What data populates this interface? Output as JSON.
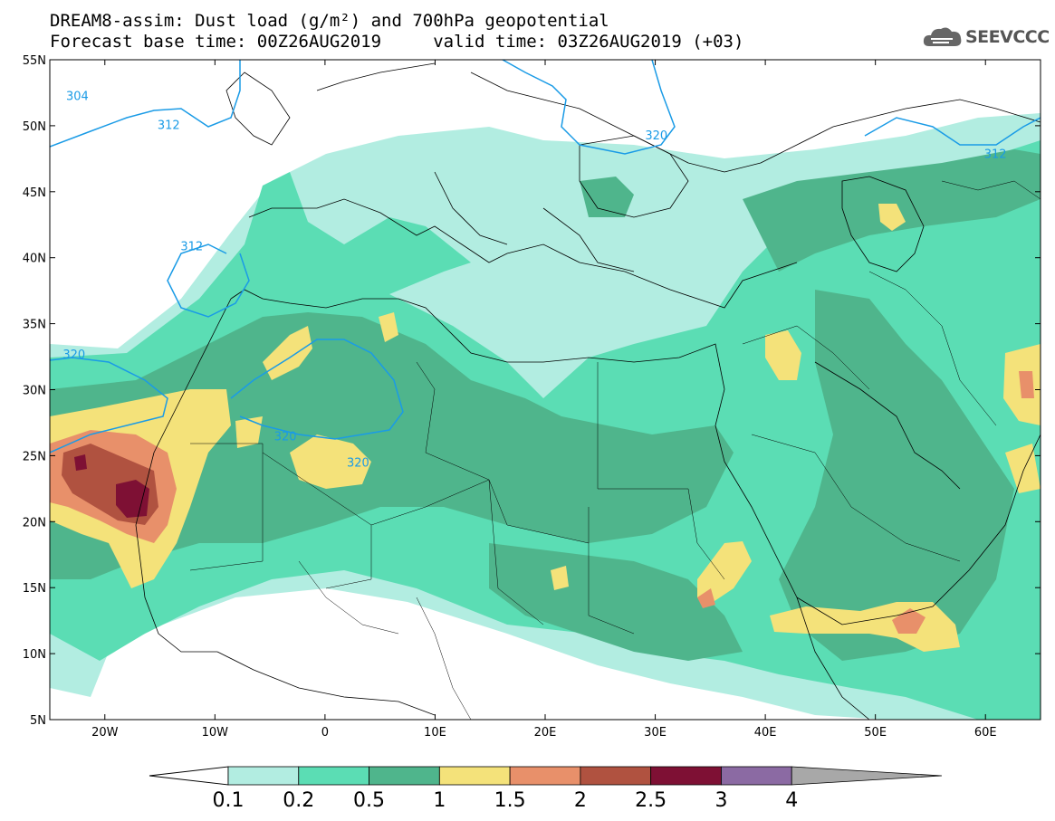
{
  "header": {
    "title_line1": "DREAM8-assim: Dust load (g/m²) and 700hPa geopotential",
    "title_line2": "Forecast base time: 00Z26AUG2019     valid time: 03Z26AUG2019 (+03)"
  },
  "logo": {
    "text": "SEEVCCC",
    "icon": "cloud-icon"
  },
  "map": {
    "lon_range": [
      -25,
      65
    ],
    "lat_range": [
      5,
      55
    ],
    "lon_ticks": [
      {
        "value": -20,
        "label": "20W"
      },
      {
        "value": -10,
        "label": "10W"
      },
      {
        "value": 0,
        "label": "0"
      },
      {
        "value": 10,
        "label": "10E"
      },
      {
        "value": 20,
        "label": "20E"
      },
      {
        "value": 30,
        "label": "30E"
      },
      {
        "value": 40,
        "label": "40E"
      },
      {
        "value": 50,
        "label": "50E"
      },
      {
        "value": 60,
        "label": "60E"
      }
    ],
    "lat_ticks": [
      {
        "value": 55,
        "label": "55N"
      },
      {
        "value": 50,
        "label": "50N"
      },
      {
        "value": 45,
        "label": "45N"
      },
      {
        "value": 40,
        "label": "40N"
      },
      {
        "value": 35,
        "label": "35N"
      },
      {
        "value": 30,
        "label": "30N"
      },
      {
        "value": 25,
        "label": "25N"
      },
      {
        "value": 20,
        "label": "20N"
      },
      {
        "value": 15,
        "label": "15N"
      },
      {
        "value": 10,
        "label": "10N"
      },
      {
        "value": 5,
        "label": "5N"
      }
    ],
    "contour_labels": [
      {
        "text": "304",
        "lon": -22.5,
        "lat": 52.3
      },
      {
        "text": "312",
        "lon": -14.2,
        "lat": 50.1
      },
      {
        "text": "320",
        "lon": 30.1,
        "lat": 49.3
      },
      {
        "text": "312",
        "lon": 60.9,
        "lat": 47.9
      },
      {
        "text": "312",
        "lon": -12.1,
        "lat": 40.9
      },
      {
        "text": "320",
        "lon": -22.8,
        "lat": 32.7
      },
      {
        "text": "320",
        "lon": -3.6,
        "lat": 26.5
      },
      {
        "text": "320",
        "lon": 3.0,
        "lat": 24.5
      }
    ]
  },
  "colorbar": {
    "colors": [
      "#b2ede1",
      "#5bddb4",
      "#4fb58c",
      "#f4e27a",
      "#e8906a",
      "#b05240",
      "#7e1034",
      "#8b6aa3",
      "#a8a8a8"
    ],
    "labels": [
      "0.1",
      "0.2",
      "0.5",
      "1",
      "1.5",
      "2",
      "2.5",
      "3",
      "4"
    ]
  }
}
